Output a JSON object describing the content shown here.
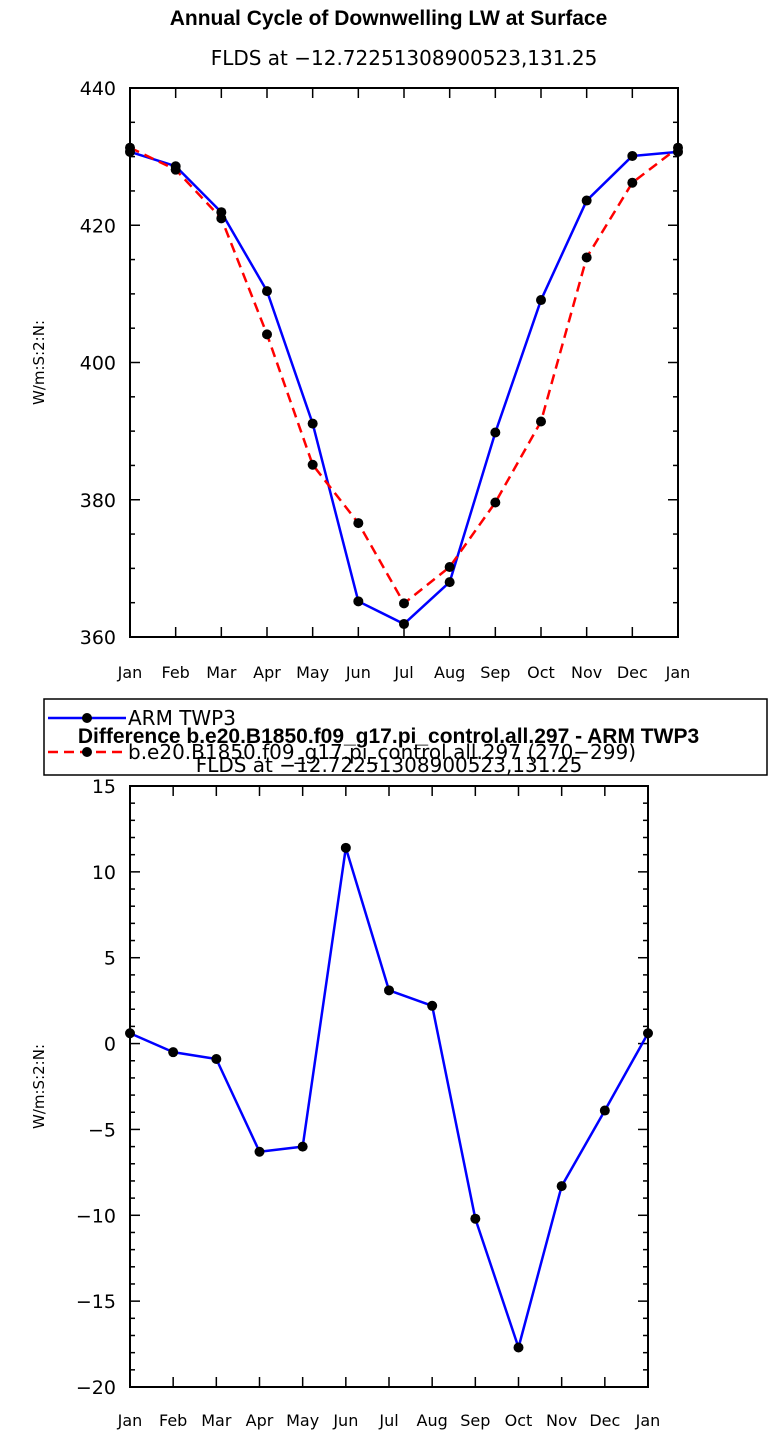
{
  "chart_data": [
    {
      "type": "line",
      "title": "Annual Cycle of Downwelling LW at Surface",
      "subtitle": "FLDS at −12.72251308900523,131.25",
      "xlabel": "",
      "ylabel": "W/m:S:2:N:",
      "categories": [
        "Jan",
        "Feb",
        "Mar",
        "Apr",
        "May",
        "Jun",
        "Jul",
        "Aug",
        "Sep",
        "Oct",
        "Nov",
        "Dec",
        "Jan"
      ],
      "ylim": [
        360,
        440
      ],
      "ytick_labels": [
        "360",
        "380",
        "400",
        "420",
        "440"
      ],
      "legend_position": "below",
      "series": [
        {
          "name": "ARM TWP3",
          "color": "#0000ff",
          "dash": "solid",
          "values": [
            430.7,
            428.6,
            421.9,
            410.4,
            391.1,
            365.2,
            361.9,
            368.0,
            389.8,
            409.1,
            423.6,
            430.1,
            430.7
          ]
        },
        {
          "name": "b.e20.B1850.f09_g17.pi_control.all.297 (270−299)",
          "color": "#ff0000",
          "dash": "dashed",
          "values": [
            431.3,
            428.1,
            421.0,
            404.1,
            385.1,
            376.6,
            364.9,
            370.2,
            379.6,
            391.4,
            415.3,
            426.2,
            431.3
          ]
        }
      ]
    },
    {
      "type": "line",
      "title": "Difference b.e20.B1850.f09_g17.pi_control.all.297 - ARM TWP3",
      "subtitle": "FLDS at −12.72251308900523,131.25",
      "xlabel": "",
      "ylabel": "W/m:S:2:N:",
      "categories": [
        "Jan",
        "Feb",
        "Mar",
        "Apr",
        "May",
        "Jun",
        "Jul",
        "Aug",
        "Sep",
        "Oct",
        "Nov",
        "Dec",
        "Jan"
      ],
      "ylim": [
        -20,
        15
      ],
      "ytick_labels": [
        "−20",
        "−15",
        "−10",
        "−5",
        "0",
        "5",
        "10",
        "15"
      ],
      "series": [
        {
          "name": "",
          "color": "#0000ff",
          "dash": "solid",
          "values": [
            0.6,
            -0.5,
            -0.9,
            -6.3,
            -6.0,
            11.4,
            3.1,
            2.2,
            -10.2,
            -17.7,
            -8.3,
            -3.9,
            0.6
          ]
        }
      ]
    }
  ]
}
